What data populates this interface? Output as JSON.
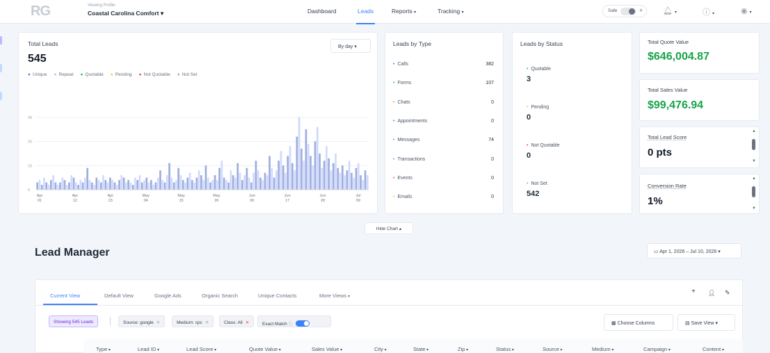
{
  "nav": {
    "logo": "RG",
    "viewing_label": "Viewing Profile",
    "profile_name": "Coastal Carolina Comfort",
    "links": [
      "Dashboard",
      "Leads",
      "Reports",
      "Tracking"
    ],
    "active_link": "Leads",
    "toggle_label": "Safe"
  },
  "total_leads": {
    "title": "Total Leads",
    "value": "545",
    "by_date_label": "By day",
    "legend": [
      "Unique",
      "Repeat",
      "Quotable",
      "Pending",
      "Not Quotable",
      "Not Set"
    ],
    "legend_colors": [
      "#3b82f6",
      "#93c5fd",
      "#22c55e",
      "#facc15",
      "#ef4444",
      "#9ca3af"
    ]
  },
  "leads_by_type": {
    "title": "Leads by Type",
    "items": [
      {
        "label": "Calls",
        "value": "382",
        "color": "#3b82f6"
      },
      {
        "label": "Forms",
        "value": "107",
        "color": "#22c55e"
      },
      {
        "label": "Chats",
        "value": "0",
        "color": "#f59e0b"
      },
      {
        "label": "Appointments",
        "value": "0",
        "color": "#3b82f6"
      },
      {
        "label": "Messages",
        "value": "74",
        "color": "#60a5fa"
      },
      {
        "label": "Transactions",
        "value": "0",
        "color": "#60a5fa"
      },
      {
        "label": "Events",
        "value": "0",
        "color": "#ec4899"
      },
      {
        "label": "Emails",
        "value": "0",
        "color": "#facc15"
      }
    ]
  },
  "leads_by_status": {
    "title": "Leads by Status",
    "items": [
      {
        "label": "Quotable",
        "value": "3",
        "color": "#22c55e"
      },
      {
        "label": "Pending",
        "value": "0",
        "color": "#facc15"
      },
      {
        "label": "Not Quotable",
        "value": "0",
        "color": "#ef4444"
      },
      {
        "label": "Not Set",
        "value": "542",
        "color": "#9ca3af"
      }
    ]
  },
  "kpis": [
    {
      "label": "Total Quote Value",
      "value": "$646,004.87"
    },
    {
      "label": "Total Sales Value",
      "value": "$99,476.94"
    },
    {
      "label": "Total Lead Score",
      "value": "0 pts"
    },
    {
      "label": "Conversion Rate",
      "value": "1%"
    }
  ],
  "hide_chart_label": "Hide Chart",
  "lead_manager": {
    "title": "Lead Manager",
    "date_range": "Apr 1, 2026 – Jul 10, 2026",
    "tabs": [
      "Current View",
      "Default View",
      "Google Ads",
      "Organic Search",
      "Unique Contacts",
      "More Views"
    ],
    "active_tab": "Current View",
    "showing_chip": "Showing 545 Leads",
    "filters": [
      {
        "label": "Source: google"
      },
      {
        "label": "Medium: cpc"
      },
      {
        "label": "Class: All"
      }
    ],
    "exact_match_label": "Exact Match",
    "choose_columns_label": "Choose Columns",
    "save_view_label": "Save View",
    "columns": [
      "Type",
      "Lead ID",
      "Lead Score",
      "Quote Value",
      "Sales Value",
      "City",
      "State",
      "Zip",
      "Status",
      "Source",
      "Medium",
      "Campaign",
      "Content"
    ]
  },
  "chart_data": {
    "type": "bar",
    "title": "",
    "xlabel": "",
    "ylabel": "",
    "ylim": [
      0,
      40
    ],
    "yticks": [
      0,
      10,
      20,
      30
    ],
    "xticks": [
      "Apr 01",
      "Apr 12",
      "Apr 23",
      "May 04",
      "May 15",
      "May 26",
      "Jun 06",
      "Jun 17",
      "Jun 28",
      "Jul 09"
    ],
    "series": [
      {
        "name": "Unique",
        "values": [
          3,
          4,
          2,
          5,
          3,
          2,
          4,
          6,
          3,
          2,
          3,
          5,
          4,
          2,
          3,
          6,
          5,
          3,
          2,
          4,
          3,
          5,
          9,
          4,
          3,
          2,
          5,
          4,
          3,
          6,
          4,
          3,
          5,
          4,
          3,
          2,
          4,
          6,
          5,
          3,
          4,
          3,
          2,
          5,
          4,
          6,
          3,
          4,
          5,
          3,
          4,
          2,
          3,
          5,
          8,
          4,
          3,
          6,
          11,
          5,
          3,
          4,
          9,
          6,
          4,
          3,
          5,
          7,
          4,
          3,
          5,
          8,
          6,
          4,
          10,
          5,
          3,
          4,
          6,
          4,
          9,
          12,
          5,
          4,
          3,
          8,
          6,
          5,
          11,
          7,
          4,
          6,
          9,
          5,
          3,
          7,
          12,
          8,
          5,
          4,
          7,
          6,
          14,
          9,
          5,
          8,
          12,
          16,
          10,
          7,
          14,
          18,
          11,
          8,
          22,
          30,
          17,
          12,
          25,
          19,
          14,
          10,
          20,
          26,
          15,
          9,
          12,
          18,
          13,
          8,
          11,
          15,
          9,
          7,
          10,
          6,
          8,
          12,
          7,
          5,
          9,
          11,
          6,
          4,
          8,
          6
        ]
      }
    ]
  }
}
